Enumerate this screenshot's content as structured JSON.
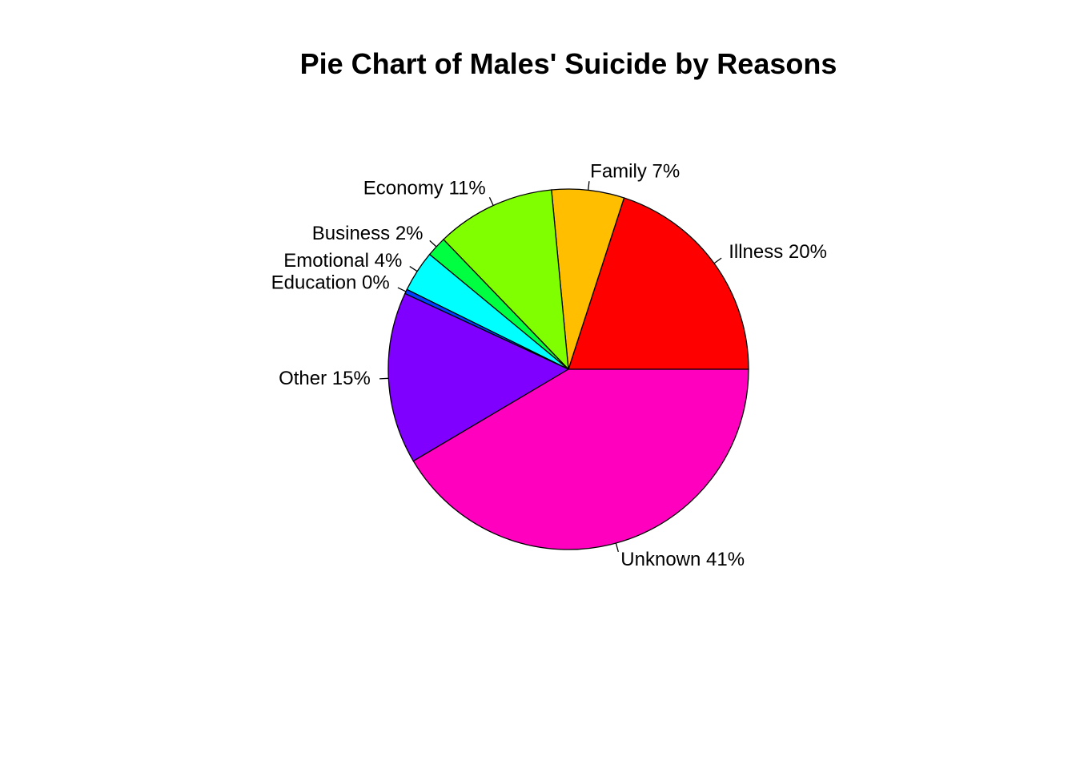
{
  "chart_data": {
    "type": "pie",
    "title": "Pie Chart of Males' Suicide by Reasons",
    "slices": [
      {
        "label": "Illness",
        "percent_label": "Illness 20%",
        "value": 20.0,
        "color": "#FF0000"
      },
      {
        "label": "Family",
        "percent_label": "Family 7%",
        "value": 6.5,
        "color": "#FFBF00"
      },
      {
        "label": "Economy",
        "percent_label": "Economy 11%",
        "value": 10.7,
        "color": "#80FF00"
      },
      {
        "label": "Business",
        "percent_label": "Business 2%",
        "value": 1.8,
        "color": "#00FF40"
      },
      {
        "label": "Emotional",
        "percent_label": "Emotional 4%",
        "value": 3.7,
        "color": "#00FFFF"
      },
      {
        "label": "Education",
        "percent_label": "Education 0%",
        "value": 0.4,
        "color": "#0040FF"
      },
      {
        "label": "Other",
        "percent_label": "Other 15%",
        "value": 15.4,
        "color": "#8000FF"
      },
      {
        "label": "Unknown",
        "percent_label": "Unknown 41%",
        "value": 41.5,
        "color": "#FF00BF"
      }
    ],
    "start_angle_deg": 0,
    "direction": "counterclockwise",
    "legend": "none"
  }
}
